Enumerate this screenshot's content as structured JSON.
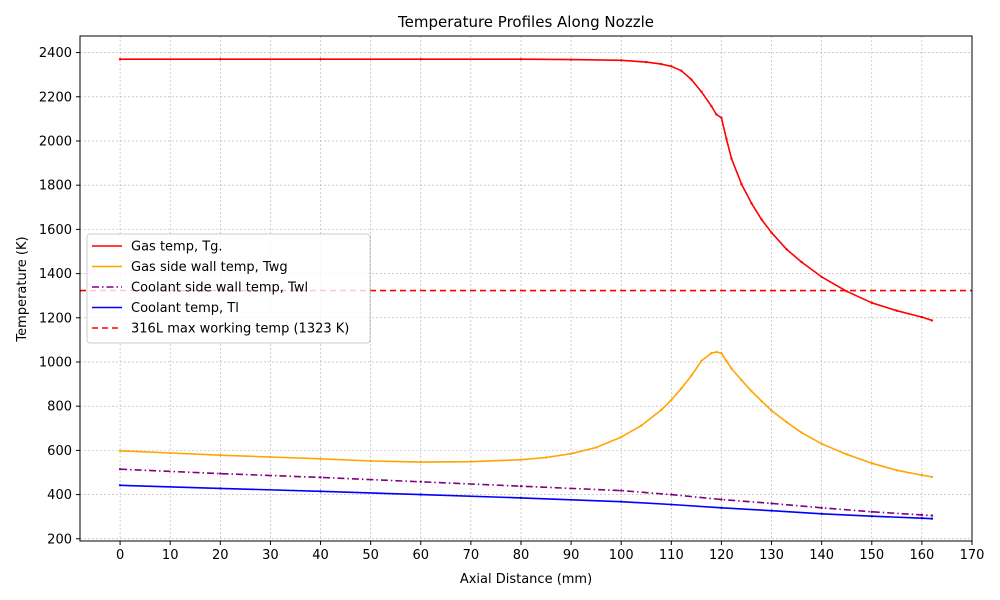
{
  "chart_data": {
    "type": "line",
    "title": "Temperature Profiles Along Nozzle",
    "xlabel": "Axial Distance (mm)",
    "ylabel": "Temperature (K)",
    "xlim": [
      -8,
      170
    ],
    "ylim": [
      190,
      2475
    ],
    "x_ticks": [
      0,
      10,
      20,
      30,
      40,
      50,
      60,
      70,
      80,
      90,
      100,
      110,
      120,
      130,
      140,
      150,
      160,
      170
    ],
    "y_ticks": [
      200,
      400,
      600,
      800,
      1000,
      1200,
      1400,
      1600,
      1800,
      2000,
      2200,
      2400
    ],
    "grid": true,
    "legend_position": "center-left",
    "series": [
      {
        "name": "Gas temp, Tg.",
        "color": "#ff0000",
        "style": "solid",
        "x": [
          0,
          20,
          40,
          60,
          80,
          90,
          100,
          105,
          108,
          110,
          112,
          114,
          116,
          118,
          119,
          120,
          121,
          122,
          124,
          126,
          128,
          130,
          133,
          136,
          140,
          145,
          150,
          155,
          160,
          162
        ],
        "y": [
          2370,
          2370,
          2370,
          2370,
          2370,
          2368,
          2365,
          2357,
          2348,
          2338,
          2318,
          2278,
          2223,
          2158,
          2120,
          2105,
          2010,
          1920,
          1805,
          1718,
          1645,
          1585,
          1510,
          1452,
          1385,
          1320,
          1268,
          1232,
          1203,
          1188
        ]
      },
      {
        "name": "Gas side wall temp, Twg",
        "color": "#ffa500",
        "style": "solid",
        "x": [
          0,
          10,
          20,
          30,
          40,
          50,
          60,
          70,
          80,
          85,
          90,
          95,
          100,
          104,
          108,
          110,
          112,
          114,
          116,
          118,
          119,
          120,
          121,
          122,
          124,
          126,
          128,
          130,
          133,
          136,
          140,
          145,
          150,
          155,
          160,
          162
        ],
        "y": [
          598,
          588,
          578,
          570,
          562,
          552,
          547,
          549,
          558,
          568,
          585,
          613,
          660,
          712,
          783,
          828,
          880,
          938,
          1005,
          1040,
          1045,
          1040,
          1005,
          970,
          918,
          868,
          823,
          780,
          728,
          680,
          630,
          582,
          542,
          510,
          488,
          480
        ]
      },
      {
        "name": "Coolant side wall temp, Twl",
        "color": "#800080",
        "style": "dashdot",
        "x": [
          0,
          20,
          40,
          60,
          80,
          100,
          110,
          120,
          130,
          140,
          150,
          160,
          162
        ],
        "y": [
          515,
          495,
          478,
          458,
          438,
          418,
          400,
          378,
          360,
          340,
          322,
          308,
          305
        ]
      },
      {
        "name": "Coolant temp, Tl",
        "color": "#0000ff",
        "style": "solid",
        "x": [
          0,
          20,
          40,
          60,
          80,
          100,
          110,
          120,
          130,
          140,
          150,
          160,
          162
        ],
        "y": [
          442,
          428,
          415,
          400,
          385,
          368,
          355,
          340,
          327,
          313,
          302,
          293,
          291
        ]
      }
    ],
    "hlines": [
      {
        "name": "316L max working temp (1323 K)",
        "y": 1323,
        "color": "#ff0000",
        "style": "dashed"
      }
    ]
  }
}
